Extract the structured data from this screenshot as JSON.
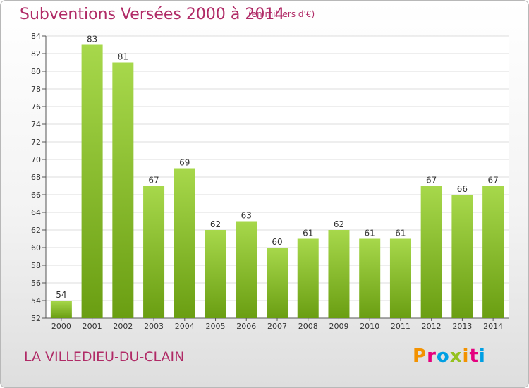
{
  "header": {
    "title": "Subventions Versées 2000 à 2014",
    "subtitle": "(en milliers d'€)"
  },
  "footer": {
    "commune": "LA VILLEDIEU-DU-CLAIN",
    "logo_text": "Proxiti",
    "logo_colors": [
      "#f39200",
      "#e5007e",
      "#009fe3",
      "#95c11f",
      "#f39200",
      "#e5007e",
      "#009fe3"
    ]
  },
  "colors": {
    "bar_light": "#a7d84b",
    "bar_dark": "#6a9e12",
    "title": "#b02a66"
  },
  "chart_data": {
    "type": "bar",
    "categories": [
      "2000",
      "2001",
      "2002",
      "2003",
      "2004",
      "2005",
      "2006",
      "2007",
      "2008",
      "2009",
      "2010",
      "2011",
      "2012",
      "2013",
      "2014"
    ],
    "values": [
      54,
      83,
      81,
      67,
      69,
      62,
      63,
      60,
      61,
      62,
      61,
      61,
      67,
      66,
      67
    ],
    "ylim": [
      52,
      84
    ],
    "yticks": [
      52,
      54,
      56,
      58,
      60,
      62,
      64,
      66,
      68,
      70,
      72,
      74,
      76,
      78,
      80,
      82,
      84
    ],
    "grid": true
  }
}
